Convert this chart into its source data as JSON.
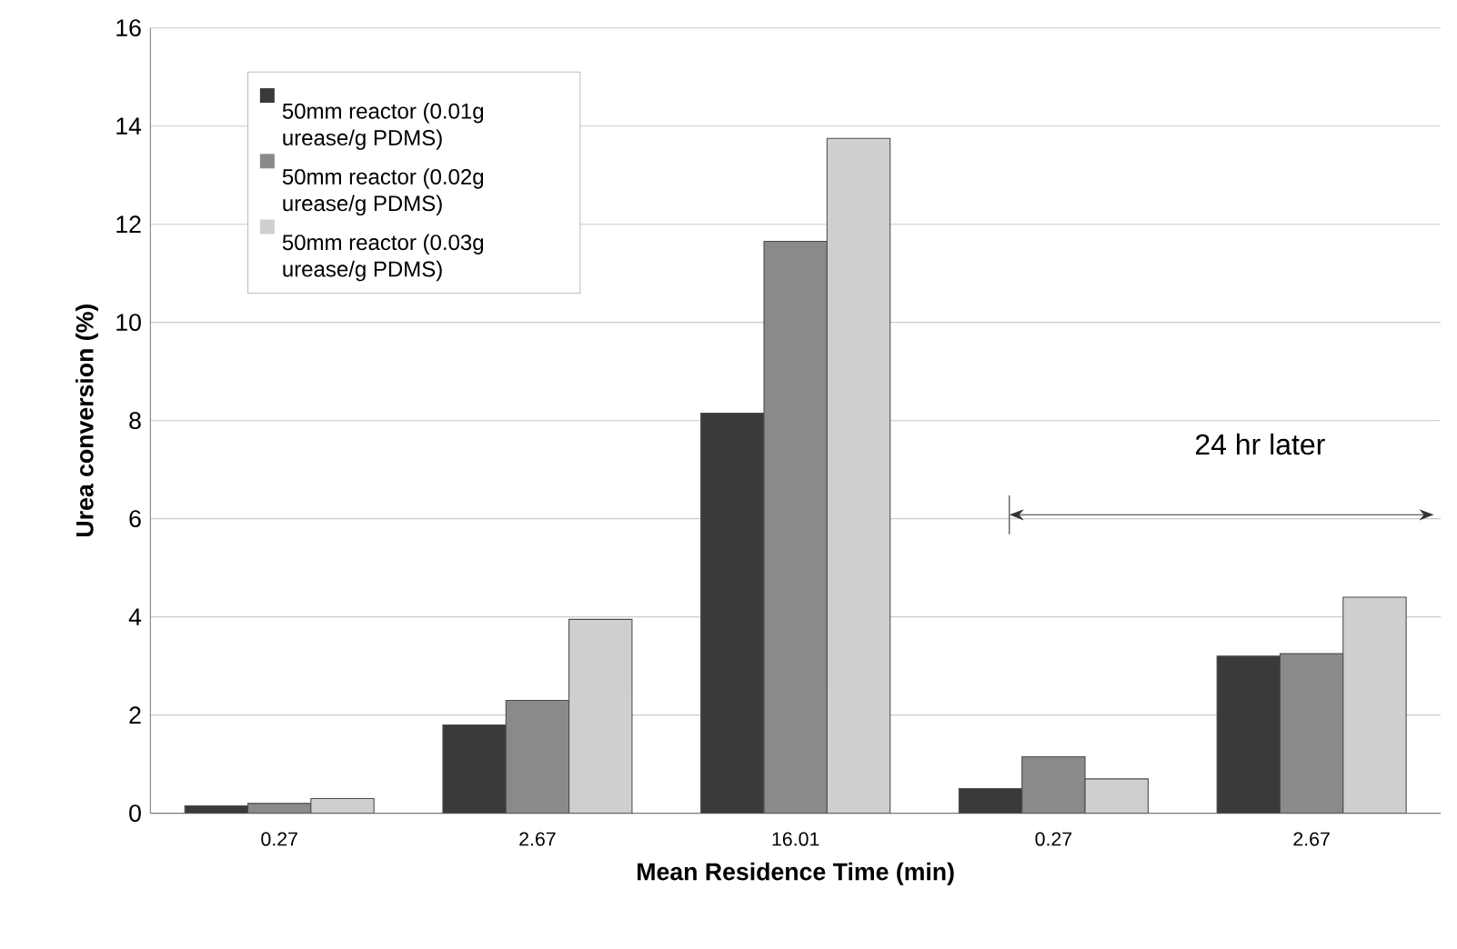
{
  "chart_data": {
    "type": "bar",
    "xlabel": "Mean Residence Time (min)",
    "ylabel": "Urea conversion (%)",
    "categories": [
      "0.27",
      "2.67",
      "16.01",
      "0.27",
      "2.67"
    ],
    "series": [
      {
        "name": "50mm reactor (0.01g urease/g PDMS)",
        "color": "#3a3a3a",
        "values": [
          0.15,
          1.8,
          8.15,
          0.5,
          3.2
        ]
      },
      {
        "name": "50mm reactor (0.02g urease/g PDMS)",
        "color": "#8a8a8a",
        "values": [
          0.2,
          2.3,
          11.65,
          1.15,
          3.25
        ]
      },
      {
        "name": "50mm reactor (0.03g urease/g PDMS)",
        "color": "#cfcfcf",
        "values": [
          0.3,
          3.95,
          13.75,
          0.7,
          4.4
        ]
      }
    ],
    "ylim": [
      0,
      16
    ],
    "yticks": [
      0,
      2,
      4,
      6,
      8,
      10,
      12,
      14,
      16
    ],
    "grid": "y",
    "legend": "top left",
    "annotations": [
      "24 hr later"
    ]
  }
}
